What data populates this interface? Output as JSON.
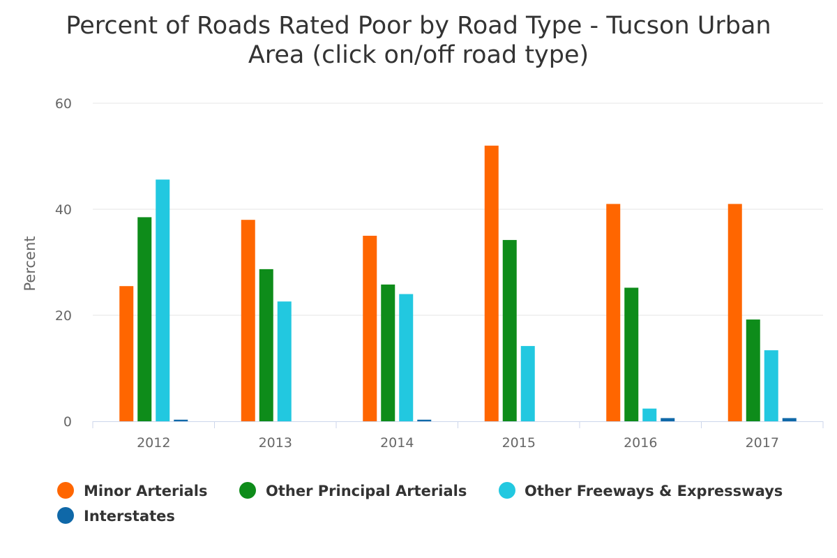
{
  "chart_data": {
    "type": "bar",
    "title_lines": [
      "Percent of Roads Rated Poor by Road Type - Tucson Urban",
      "Area (click on/off road type)"
    ],
    "ylabel": "Percent",
    "xlabel": "",
    "ylim": [
      0,
      60
    ],
    "yticks": [
      0,
      20,
      40,
      60
    ],
    "grid": true,
    "legend_position": "bottom",
    "categories": [
      "2012",
      "2013",
      "2014",
      "2015",
      "2016",
      "2017"
    ],
    "series": [
      {
        "name": "Minor Arterials",
        "color": "#ff6600",
        "values": [
          25.5,
          38,
          35,
          52,
          41,
          41
        ]
      },
      {
        "name": "Other Principal Arterials",
        "color": "#0e8c1a",
        "values": [
          38.5,
          28.7,
          25.8,
          34.2,
          25.2,
          19.2
        ]
      },
      {
        "name": "Other Freeways & Expressways",
        "color": "#22c8e0",
        "values": [
          45.6,
          22.6,
          24,
          14.2,
          2.4,
          13.4
        ]
      },
      {
        "name": "Interstates",
        "color": "#0f68a8",
        "values": [
          0.3,
          0,
          0.3,
          0,
          0.6,
          0.6
        ]
      }
    ]
  }
}
